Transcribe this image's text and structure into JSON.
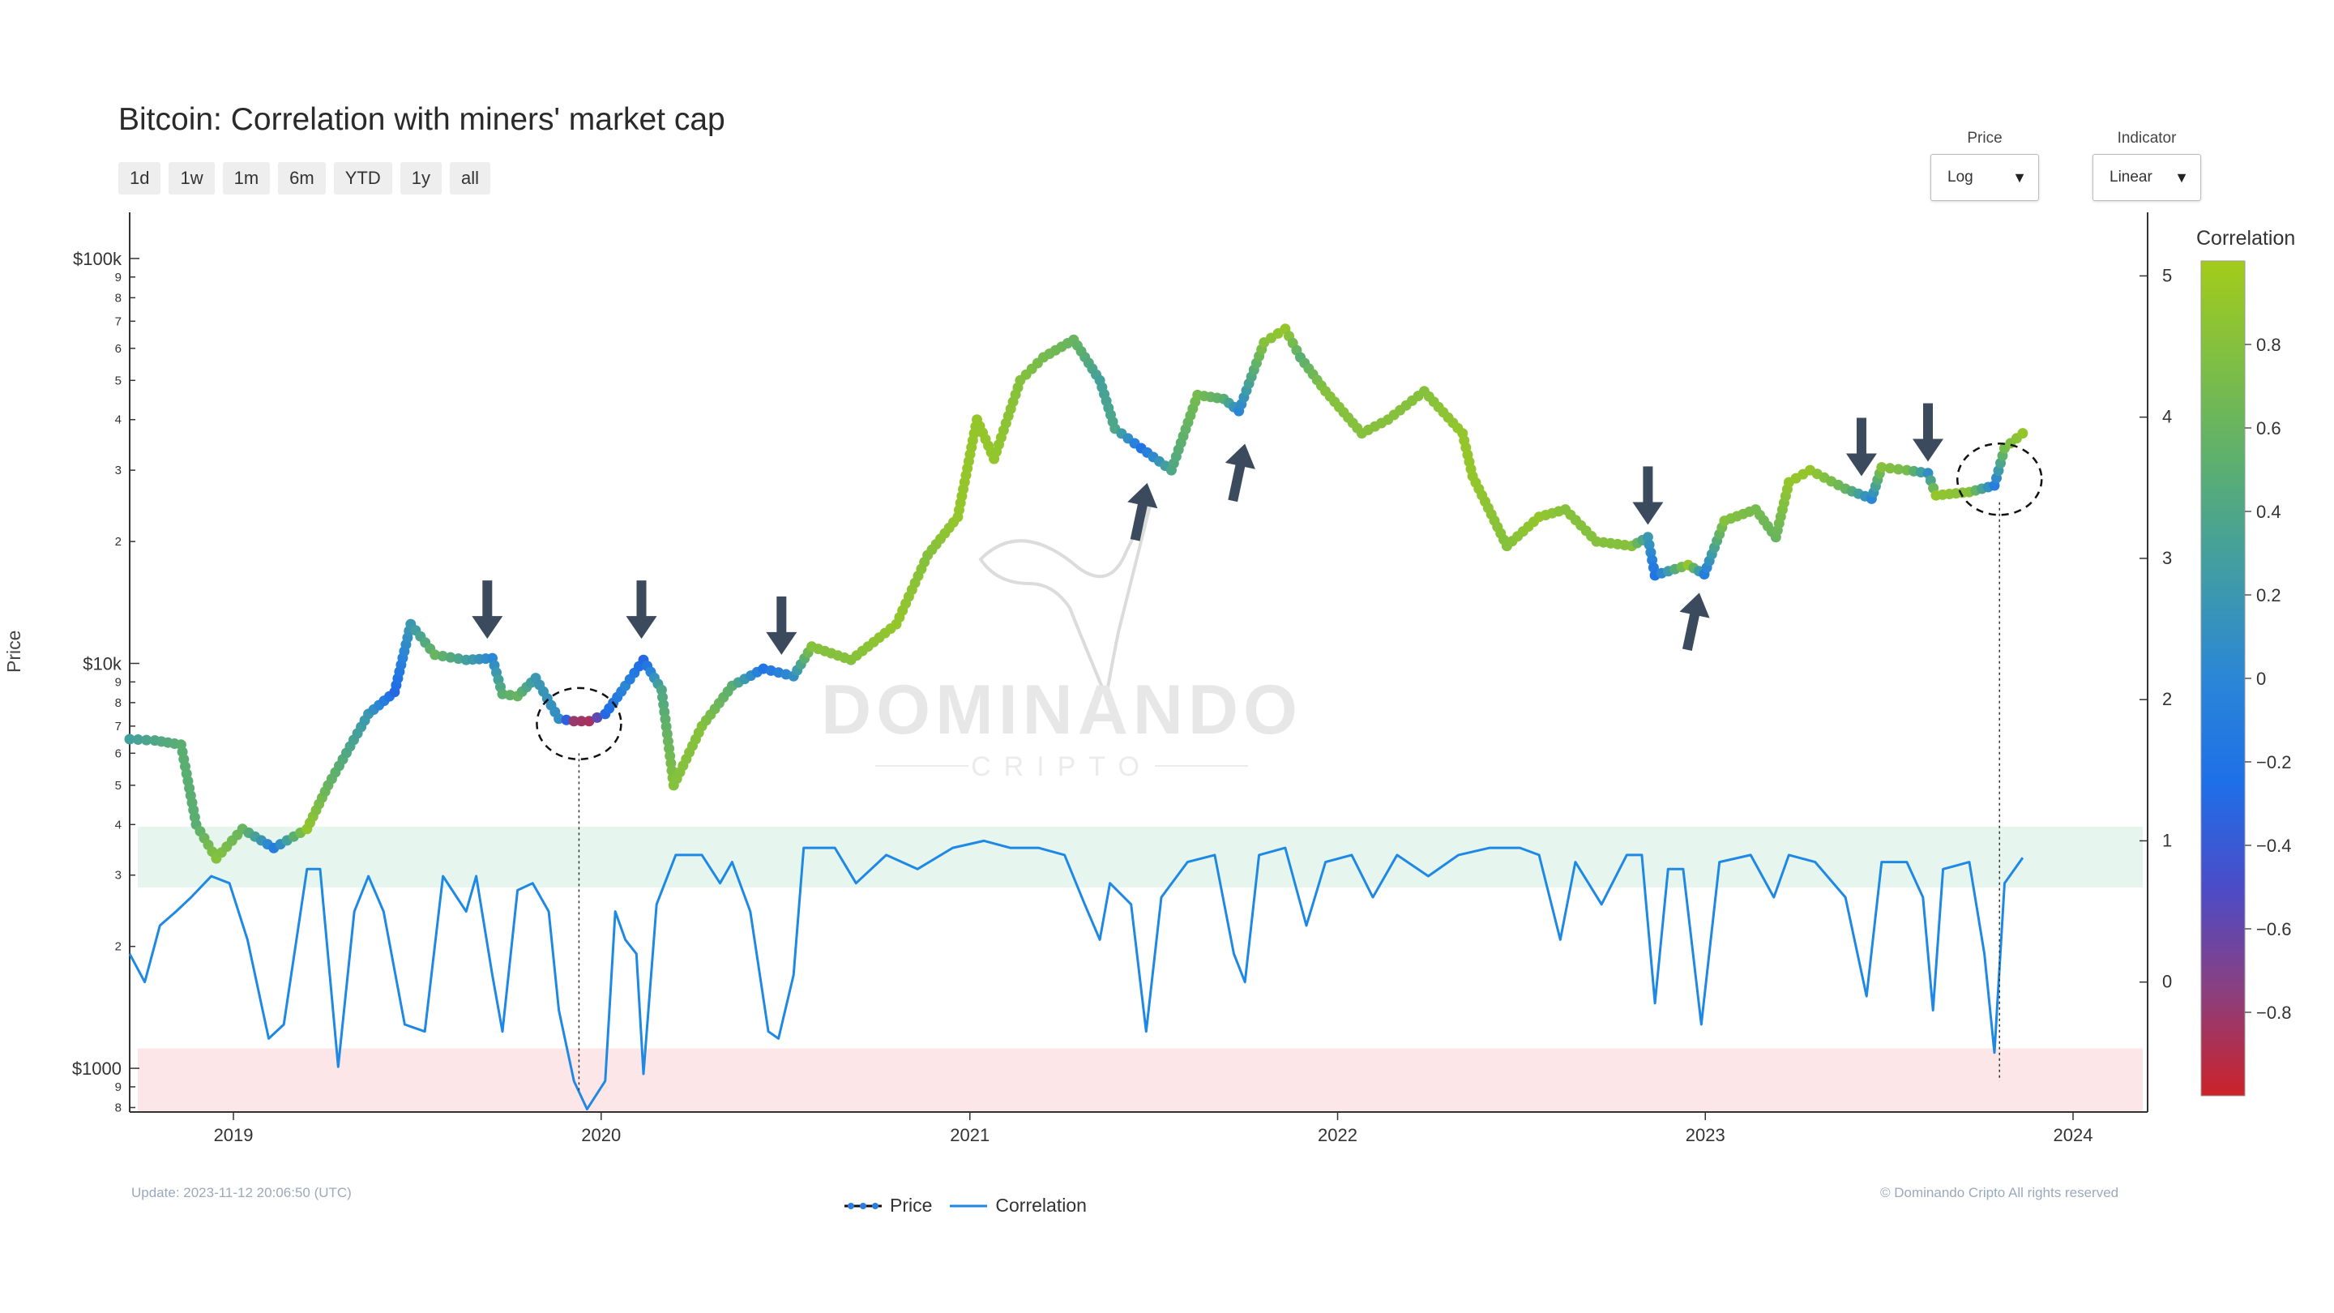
{
  "title": "Bitcoin: Correlation with miners' market cap",
  "range_buttons": [
    "1d",
    "1w",
    "1m",
    "6m",
    "YTD",
    "1y",
    "all"
  ],
  "controls": {
    "price": {
      "label": "Price",
      "value": "Log"
    },
    "indicator": {
      "label": "Indicator",
      "value": "Linear"
    }
  },
  "footer": {
    "update": "Update: 2023-11-12 20:06:50 (UTC)",
    "copyright": "© Dominando Cripto All rights reserved"
  },
  "watermark": {
    "line1": "DOMINANDO",
    "line2": "CRIPTO"
  },
  "legend": [
    {
      "name": "Price",
      "color": "#111111",
      "marker": "#2a7de1"
    },
    {
      "name": "Correlation",
      "color": "#1e88e5"
    }
  ],
  "chart_data": {
    "type": "line",
    "xlabel": "",
    "ylabel": "Price",
    "y2label": "",
    "x_range": [
      "2018-09-20",
      "2024-03-15"
    ],
    "x_ticks": [
      "2019",
      "2020",
      "2021",
      "2022",
      "2023",
      "2024"
    ],
    "y_scale": "log",
    "y_range": [
      780,
      130000
    ],
    "y_ticks": [
      {
        "v": 100000,
        "t": "$100k"
      },
      {
        "v": 90000,
        "t": "9"
      },
      {
        "v": 80000,
        "t": "8"
      },
      {
        "v": 70000,
        "t": "7"
      },
      {
        "v": 60000,
        "t": "6"
      },
      {
        "v": 50000,
        "t": "5"
      },
      {
        "v": 40000,
        "t": "4"
      },
      {
        "v": 30000,
        "t": "3"
      },
      {
        "v": 20000,
        "t": "2"
      },
      {
        "v": 10000,
        "t": "$10k"
      },
      {
        "v": 9000,
        "t": "9"
      },
      {
        "v": 8000,
        "t": "8"
      },
      {
        "v": 7000,
        "t": "7"
      },
      {
        "v": 6000,
        "t": "6"
      },
      {
        "v": 5000,
        "t": "5"
      },
      {
        "v": 4000,
        "t": "4"
      },
      {
        "v": 3000,
        "t": "3"
      },
      {
        "v": 2000,
        "t": "2"
      },
      {
        "v": 1000,
        "t": "$1000"
      },
      {
        "v": 900,
        "t": "9"
      },
      {
        "v": 800,
        "t": "8"
      }
    ],
    "y2_range": [
      -0.92,
      5.45
    ],
    "y2_ticks": [
      0,
      1,
      2,
      3,
      4,
      5
    ],
    "colorbar": {
      "title": "Correlation",
      "range": [
        -1,
        1
      ],
      "ticks": [
        0.8,
        0.6,
        0.4,
        0.2,
        0,
        -0.2,
        -0.4,
        -0.6,
        -0.8
      ],
      "colors": [
        "#cc2229",
        "#8b3f7f",
        "#4b4cc8",
        "#1e6fe8",
        "#2b86d6",
        "#3f9ca6",
        "#5aae72",
        "#7dbe45",
        "#a3cc1a"
      ]
    },
    "zones": [
      {
        "name": "high-correlation",
        "from": 0.67,
        "to": 1.1,
        "color": "#e6f5ee"
      },
      {
        "name": "low-correlation",
        "from": -0.92,
        "to": -0.47,
        "color": "#fde6e7"
      }
    ],
    "series": [
      {
        "name": "Price",
        "type": "line-with-colored-markers",
        "points": [
          [
            "2018-09-20",
            6500,
            0.3
          ],
          [
            "2018-10-15",
            6450,
            0.4
          ],
          [
            "2018-11-10",
            6300,
            0.5
          ],
          [
            "2018-11-25",
            4000,
            0.5
          ],
          [
            "2018-12-15",
            3300,
            0.8
          ],
          [
            "2019-01-10",
            3900,
            0.6
          ],
          [
            "2019-02-10",
            3500,
            -0.1
          ],
          [
            "2019-03-15",
            3900,
            0.9
          ],
          [
            "2019-04-05",
            5000,
            0.6
          ],
          [
            "2019-05-15",
            7500,
            0.2
          ],
          [
            "2019-06-10",
            8500,
            -0.3
          ],
          [
            "2019-06-26",
            12500,
            0.2
          ],
          [
            "2019-07-20",
            10500,
            0.6
          ],
          [
            "2019-08-20",
            10200,
            0.3
          ],
          [
            "2019-09-15",
            10300,
            0.0
          ],
          [
            "2019-09-25",
            8400,
            0.5
          ],
          [
            "2019-10-10",
            8300,
            0.6
          ],
          [
            "2019-10-28",
            9200,
            0.2
          ],
          [
            "2019-11-20",
            7300,
            0.1
          ],
          [
            "2019-12-05",
            7200,
            -0.8
          ],
          [
            "2019-12-20",
            7200,
            -0.85
          ],
          [
            "2020-01-05",
            7500,
            -0.3
          ],
          [
            "2020-01-25",
            8800,
            0.0
          ],
          [
            "2020-02-12",
            10200,
            -0.3
          ],
          [
            "2020-03-01",
            8600,
            0.4
          ],
          [
            "2020-03-13",
            5000,
            0.8
          ],
          [
            "2020-04-10",
            7000,
            0.8
          ],
          [
            "2020-05-10",
            8800,
            0.5
          ],
          [
            "2020-06-10",
            9700,
            -0.2
          ],
          [
            "2020-07-10",
            9300,
            0.1
          ],
          [
            "2020-07-28",
            11000,
            0.8
          ],
          [
            "2020-09-05",
            10200,
            0.8
          ],
          [
            "2020-10-20",
            12500,
            0.9
          ],
          [
            "2020-11-20",
            18500,
            0.8
          ],
          [
            "2020-12-20",
            23000,
            0.9
          ],
          [
            "2021-01-08",
            40000,
            0.9
          ],
          [
            "2021-01-25",
            32000,
            0.9
          ],
          [
            "2021-02-20",
            50000,
            0.8
          ],
          [
            "2021-03-15",
            57000,
            0.7
          ],
          [
            "2021-04-14",
            63000,
            0.6
          ],
          [
            "2021-05-10",
            50000,
            0.3
          ],
          [
            "2021-05-25",
            38000,
            0.4
          ],
          [
            "2021-06-20",
            34000,
            -0.2
          ],
          [
            "2021-07-20",
            30000,
            0.4
          ],
          [
            "2021-08-15",
            46000,
            0.7
          ],
          [
            "2021-09-10",
            45000,
            0.5
          ],
          [
            "2021-09-25",
            42000,
            0.0
          ],
          [
            "2021-10-20",
            62000,
            0.8
          ],
          [
            "2021-11-10",
            67000,
            0.9
          ],
          [
            "2021-11-25",
            57000,
            0.5
          ],
          [
            "2021-12-20",
            47000,
            0.8
          ],
          [
            "2022-01-25",
            37000,
            0.8
          ],
          [
            "2022-02-20",
            40000,
            0.8
          ],
          [
            "2022-03-28",
            47000,
            0.8
          ],
          [
            "2022-05-05",
            37000,
            0.9
          ],
          [
            "2022-05-15",
            29000,
            0.9
          ],
          [
            "2022-06-18",
            19500,
            0.8
          ],
          [
            "2022-07-20",
            23000,
            0.9
          ],
          [
            "2022-08-15",
            24000,
            0.8
          ],
          [
            "2022-09-15",
            20000,
            0.8
          ],
          [
            "2022-10-20",
            19500,
            0.8
          ],
          [
            "2022-11-05",
            20500,
            0.2
          ],
          [
            "2022-11-12",
            16500,
            -0.2
          ],
          [
            "2022-12-15",
            17500,
            0.9
          ],
          [
            "2022-12-31",
            16600,
            -0.1
          ],
          [
            "2023-01-20",
            22500,
            0.8
          ],
          [
            "2023-02-20",
            24000,
            0.7
          ],
          [
            "2023-03-12",
            20500,
            0.6
          ],
          [
            "2023-03-25",
            28000,
            0.9
          ],
          [
            "2023-04-15",
            30000,
            0.9
          ],
          [
            "2023-05-20",
            27000,
            0.6
          ],
          [
            "2023-06-15",
            25500,
            0.0
          ],
          [
            "2023-06-25",
            30500,
            0.8
          ],
          [
            "2023-07-20",
            30000,
            0.7
          ],
          [
            "2023-08-10",
            29500,
            0.1
          ],
          [
            "2023-08-18",
            26000,
            0.9
          ],
          [
            "2023-09-20",
            26500,
            0.8
          ],
          [
            "2023-10-15",
            27500,
            -0.1
          ],
          [
            "2023-10-25",
            34000,
            0.7
          ],
          [
            "2023-11-12",
            37000,
            0.9
          ]
        ]
      },
      {
        "name": "Correlation",
        "axis": "right",
        "points": [
          [
            "2018-09-20",
            0.2
          ],
          [
            "2018-10-05",
            0.0
          ],
          [
            "2018-10-20",
            0.4
          ],
          [
            "2018-11-05",
            0.5
          ],
          [
            "2018-11-20",
            0.6
          ],
          [
            "2018-12-10",
            0.75
          ],
          [
            "2018-12-28",
            0.7
          ],
          [
            "2019-01-15",
            0.3
          ],
          [
            "2019-02-05",
            -0.4
          ],
          [
            "2019-02-20",
            -0.3
          ],
          [
            "2019-03-15",
            0.8
          ],
          [
            "2019-03-28",
            0.8
          ],
          [
            "2019-04-15",
            -0.6
          ],
          [
            "2019-05-01",
            0.5
          ],
          [
            "2019-05-15",
            0.75
          ],
          [
            "2019-05-30",
            0.5
          ],
          [
            "2019-06-20",
            -0.3
          ],
          [
            "2019-07-10",
            -0.35
          ],
          [
            "2019-07-28",
            0.75
          ],
          [
            "2019-08-20",
            0.5
          ],
          [
            "2019-08-30",
            0.75
          ],
          [
            "2019-09-15",
            0.05
          ],
          [
            "2019-09-25",
            -0.35
          ],
          [
            "2019-10-10",
            0.65
          ],
          [
            "2019-10-25",
            0.7
          ],
          [
            "2019-11-10",
            0.5
          ],
          [
            "2019-11-20",
            -0.2
          ],
          [
            "2019-12-05",
            -0.7
          ],
          [
            "2019-12-18",
            -0.9
          ],
          [
            "2020-01-05",
            -0.7
          ],
          [
            "2020-01-15",
            0.5
          ],
          [
            "2020-01-25",
            0.3
          ],
          [
            "2020-02-05",
            0.2
          ],
          [
            "2020-02-12",
            -0.65
          ],
          [
            "2020-02-25",
            0.55
          ],
          [
            "2020-03-15",
            0.9
          ],
          [
            "2020-04-10",
            0.9
          ],
          [
            "2020-04-28",
            0.7
          ],
          [
            "2020-05-10",
            0.85
          ],
          [
            "2020-05-28",
            0.5
          ],
          [
            "2020-06-15",
            -0.35
          ],
          [
            "2020-06-25",
            -0.4
          ],
          [
            "2020-07-10",
            0.05
          ],
          [
            "2020-07-20",
            0.95
          ],
          [
            "2020-08-20",
            0.95
          ],
          [
            "2020-09-10",
            0.7
          ],
          [
            "2020-10-10",
            0.9
          ],
          [
            "2020-11-10",
            0.8
          ],
          [
            "2020-12-15",
            0.95
          ],
          [
            "2021-01-15",
            1.0
          ],
          [
            "2021-02-10",
            0.95
          ],
          [
            "2021-03-10",
            0.95
          ],
          [
            "2021-04-05",
            0.9
          ],
          [
            "2021-04-25",
            0.55
          ],
          [
            "2021-05-10",
            0.3
          ],
          [
            "2021-05-20",
            0.7
          ],
          [
            "2021-06-10",
            0.55
          ],
          [
            "2021-06-25",
            -0.35
          ],
          [
            "2021-07-10",
            0.6
          ],
          [
            "2021-08-05",
            0.85
          ],
          [
            "2021-09-01",
            0.9
          ],
          [
            "2021-09-20",
            0.2
          ],
          [
            "2021-10-01",
            0.0
          ],
          [
            "2021-10-15",
            0.9
          ],
          [
            "2021-11-10",
            0.95
          ],
          [
            "2021-12-01",
            0.4
          ],
          [
            "2021-12-20",
            0.85
          ],
          [
            "2022-01-15",
            0.9
          ],
          [
            "2022-02-05",
            0.6
          ],
          [
            "2022-03-01",
            0.9
          ],
          [
            "2022-04-01",
            0.75
          ],
          [
            "2022-05-01",
            0.9
          ],
          [
            "2022-06-01",
            0.95
          ],
          [
            "2022-07-01",
            0.95
          ],
          [
            "2022-07-20",
            0.9
          ],
          [
            "2022-08-10",
            0.3
          ],
          [
            "2022-08-25",
            0.85
          ],
          [
            "2022-09-20",
            0.55
          ],
          [
            "2022-10-15",
            0.9
          ],
          [
            "2022-10-30",
            0.9
          ],
          [
            "2022-11-12",
            -0.15
          ],
          [
            "2022-11-25",
            0.8
          ],
          [
            "2022-12-10",
            0.8
          ],
          [
            "2022-12-28",
            -0.3
          ],
          [
            "2023-01-15",
            0.85
          ],
          [
            "2023-02-15",
            0.9
          ],
          [
            "2023-03-10",
            0.6
          ],
          [
            "2023-03-25",
            0.9
          ],
          [
            "2023-04-20",
            0.85
          ],
          [
            "2023-05-20",
            0.6
          ],
          [
            "2023-06-10",
            -0.1
          ],
          [
            "2023-06-25",
            0.85
          ],
          [
            "2023-07-20",
            0.85
          ],
          [
            "2023-08-05",
            0.6
          ],
          [
            "2023-08-15",
            -0.2
          ],
          [
            "2023-08-25",
            0.8
          ],
          [
            "2023-09-20",
            0.85
          ],
          [
            "2023-10-05",
            0.2
          ],
          [
            "2023-10-15",
            -0.5
          ],
          [
            "2023-10-25",
            0.7
          ],
          [
            "2023-11-12",
            0.88
          ]
        ]
      }
    ],
    "annotations": [
      {
        "kind": "arrow-down",
        "date": "2019-09-10",
        "at": 11500
      },
      {
        "kind": "arrow-down",
        "date": "2020-02-10",
        "at": 11500
      },
      {
        "kind": "arrow-down",
        "date": "2020-06-28",
        "at": 10500
      },
      {
        "kind": "arrow-up",
        "date": "2021-06-20",
        "at": 28000
      },
      {
        "kind": "arrow-up",
        "date": "2021-09-25",
        "at": 35000
      },
      {
        "kind": "arrow-down",
        "date": "2022-11-05",
        "at": 22000
      },
      {
        "kind": "arrow-up",
        "date": "2022-12-20",
        "at": 15000
      },
      {
        "kind": "arrow-down",
        "date": "2023-06-05",
        "at": 29000
      },
      {
        "kind": "arrow-down",
        "date": "2023-08-10",
        "at": 31500
      },
      {
        "kind": "circle",
        "date": "2019-12-10",
        "at": 7100
      },
      {
        "kind": "circle",
        "date": "2023-10-20",
        "at": 28500
      },
      {
        "kind": "dotted-line",
        "date": "2019-12-10",
        "from": 6000,
        "to": 870
      },
      {
        "kind": "dotted-line",
        "date": "2023-10-20",
        "from": 25000,
        "to": 930
      }
    ]
  }
}
